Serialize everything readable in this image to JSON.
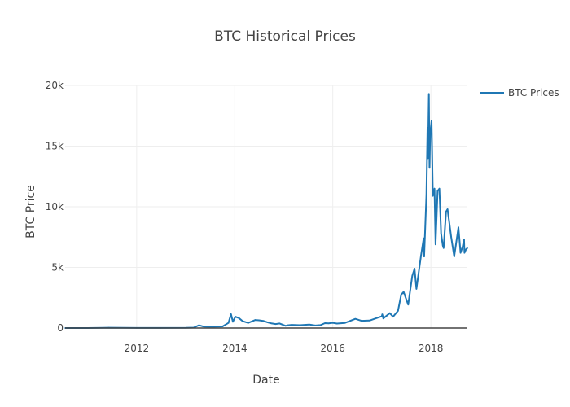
{
  "chart_data": {
    "type": "line",
    "title": "BTC Historical Prices",
    "xlabel": "Date",
    "ylabel": "BTC Price",
    "xlim": [
      "2010-07-17",
      "2018-09-30"
    ],
    "ylim": [
      0,
      20000
    ],
    "x_ticks": [
      {
        "label": "2012",
        "date": "2012-01-01"
      },
      {
        "label": "2014",
        "date": "2014-01-01"
      },
      {
        "label": "2016",
        "date": "2016-01-01"
      },
      {
        "label": "2018",
        "date": "2018-01-01"
      }
    ],
    "y_ticks": [
      {
        "label": "0",
        "value": 0
      },
      {
        "label": "5k",
        "value": 5000
      },
      {
        "label": "10k",
        "value": 10000
      },
      {
        "label": "15k",
        "value": 15000
      },
      {
        "label": "20k",
        "value": 20000
      }
    ],
    "grid": true,
    "legend_position": "top-right",
    "series": [
      {
        "name": "BTC Prices",
        "color": "#1f77b4",
        "points": [
          [
            "2010-07-17",
            0.05
          ],
          [
            "2011-01-01",
            0.3
          ],
          [
            "2011-06-08",
            30
          ],
          [
            "2011-12-31",
            4.7
          ],
          [
            "2012-06-30",
            6.7
          ],
          [
            "2012-12-31",
            13.5
          ],
          [
            "2013-03-01",
            34
          ],
          [
            "2013-04-09",
            230
          ],
          [
            "2013-05-15",
            115
          ],
          [
            "2013-08-01",
            105
          ],
          [
            "2013-10-01",
            125
          ],
          [
            "2013-11-15",
            420
          ],
          [
            "2013-12-04",
            1150
          ],
          [
            "2013-12-18",
            520
          ],
          [
            "2014-01-05",
            930
          ],
          [
            "2014-02-01",
            820
          ],
          [
            "2014-03-01",
            565
          ],
          [
            "2014-04-11",
            420
          ],
          [
            "2014-06-03",
            665
          ],
          [
            "2014-07-01",
            640
          ],
          [
            "2014-08-01",
            590
          ],
          [
            "2014-09-01",
            475
          ],
          [
            "2014-10-01",
            385
          ],
          [
            "2014-11-01",
            330
          ],
          [
            "2014-12-01",
            375
          ],
          [
            "2015-01-14",
            180
          ],
          [
            "2015-02-01",
            230
          ],
          [
            "2015-03-01",
            260
          ],
          [
            "2015-05-01",
            235
          ],
          [
            "2015-07-10",
            290
          ],
          [
            "2015-08-24",
            210
          ],
          [
            "2015-10-01",
            240
          ],
          [
            "2015-11-04",
            400
          ],
          [
            "2015-12-01",
            380
          ],
          [
            "2015-12-31",
            430
          ],
          [
            "2016-02-01",
            370
          ],
          [
            "2016-04-01",
            420
          ],
          [
            "2016-06-17",
            760
          ],
          [
            "2016-08-01",
            600
          ],
          [
            "2016-10-01",
            615
          ],
          [
            "2016-12-31",
            965
          ],
          [
            "2017-01-04",
            1130
          ],
          [
            "2017-01-11",
            790
          ],
          [
            "2017-03-01",
            1230
          ],
          [
            "2017-03-25",
            930
          ],
          [
            "2017-05-01",
            1420
          ],
          [
            "2017-05-25",
            2760
          ],
          [
            "2017-06-12",
            2980
          ],
          [
            "2017-07-16",
            1930
          ],
          [
            "2017-08-15",
            4300
          ],
          [
            "2017-09-01",
            4900
          ],
          [
            "2017-09-15",
            3230
          ],
          [
            "2017-10-20",
            6000
          ],
          [
            "2017-11-08",
            7400
          ],
          [
            "2017-11-12",
            5900
          ],
          [
            "2017-11-29",
            11000
          ],
          [
            "2017-12-07",
            16500
          ],
          [
            "2017-12-10",
            14000
          ],
          [
            "2017-12-17",
            19300
          ],
          [
            "2017-12-22",
            13200
          ],
          [
            "2017-12-27",
            16000
          ],
          [
            "2018-01-06",
            17100
          ],
          [
            "2018-01-16",
            10900
          ],
          [
            "2018-01-28",
            11500
          ],
          [
            "2018-02-05",
            6900
          ],
          [
            "2018-02-20",
            11300
          ],
          [
            "2018-03-05",
            11500
          ],
          [
            "2018-03-18",
            7800
          ],
          [
            "2018-03-31",
            6800
          ],
          [
            "2018-04-06",
            6600
          ],
          [
            "2018-04-24",
            9600
          ],
          [
            "2018-05-05",
            9800
          ],
          [
            "2018-06-01",
            7500
          ],
          [
            "2018-06-24",
            5900
          ],
          [
            "2018-07-25",
            8300
          ],
          [
            "2018-08-10",
            6200
          ],
          [
            "2018-08-25",
            6700
          ],
          [
            "2018-09-05",
            7300
          ],
          [
            "2018-09-08",
            6200
          ],
          [
            "2018-09-20",
            6500
          ],
          [
            "2018-09-30",
            6600
          ]
        ]
      }
    ]
  }
}
